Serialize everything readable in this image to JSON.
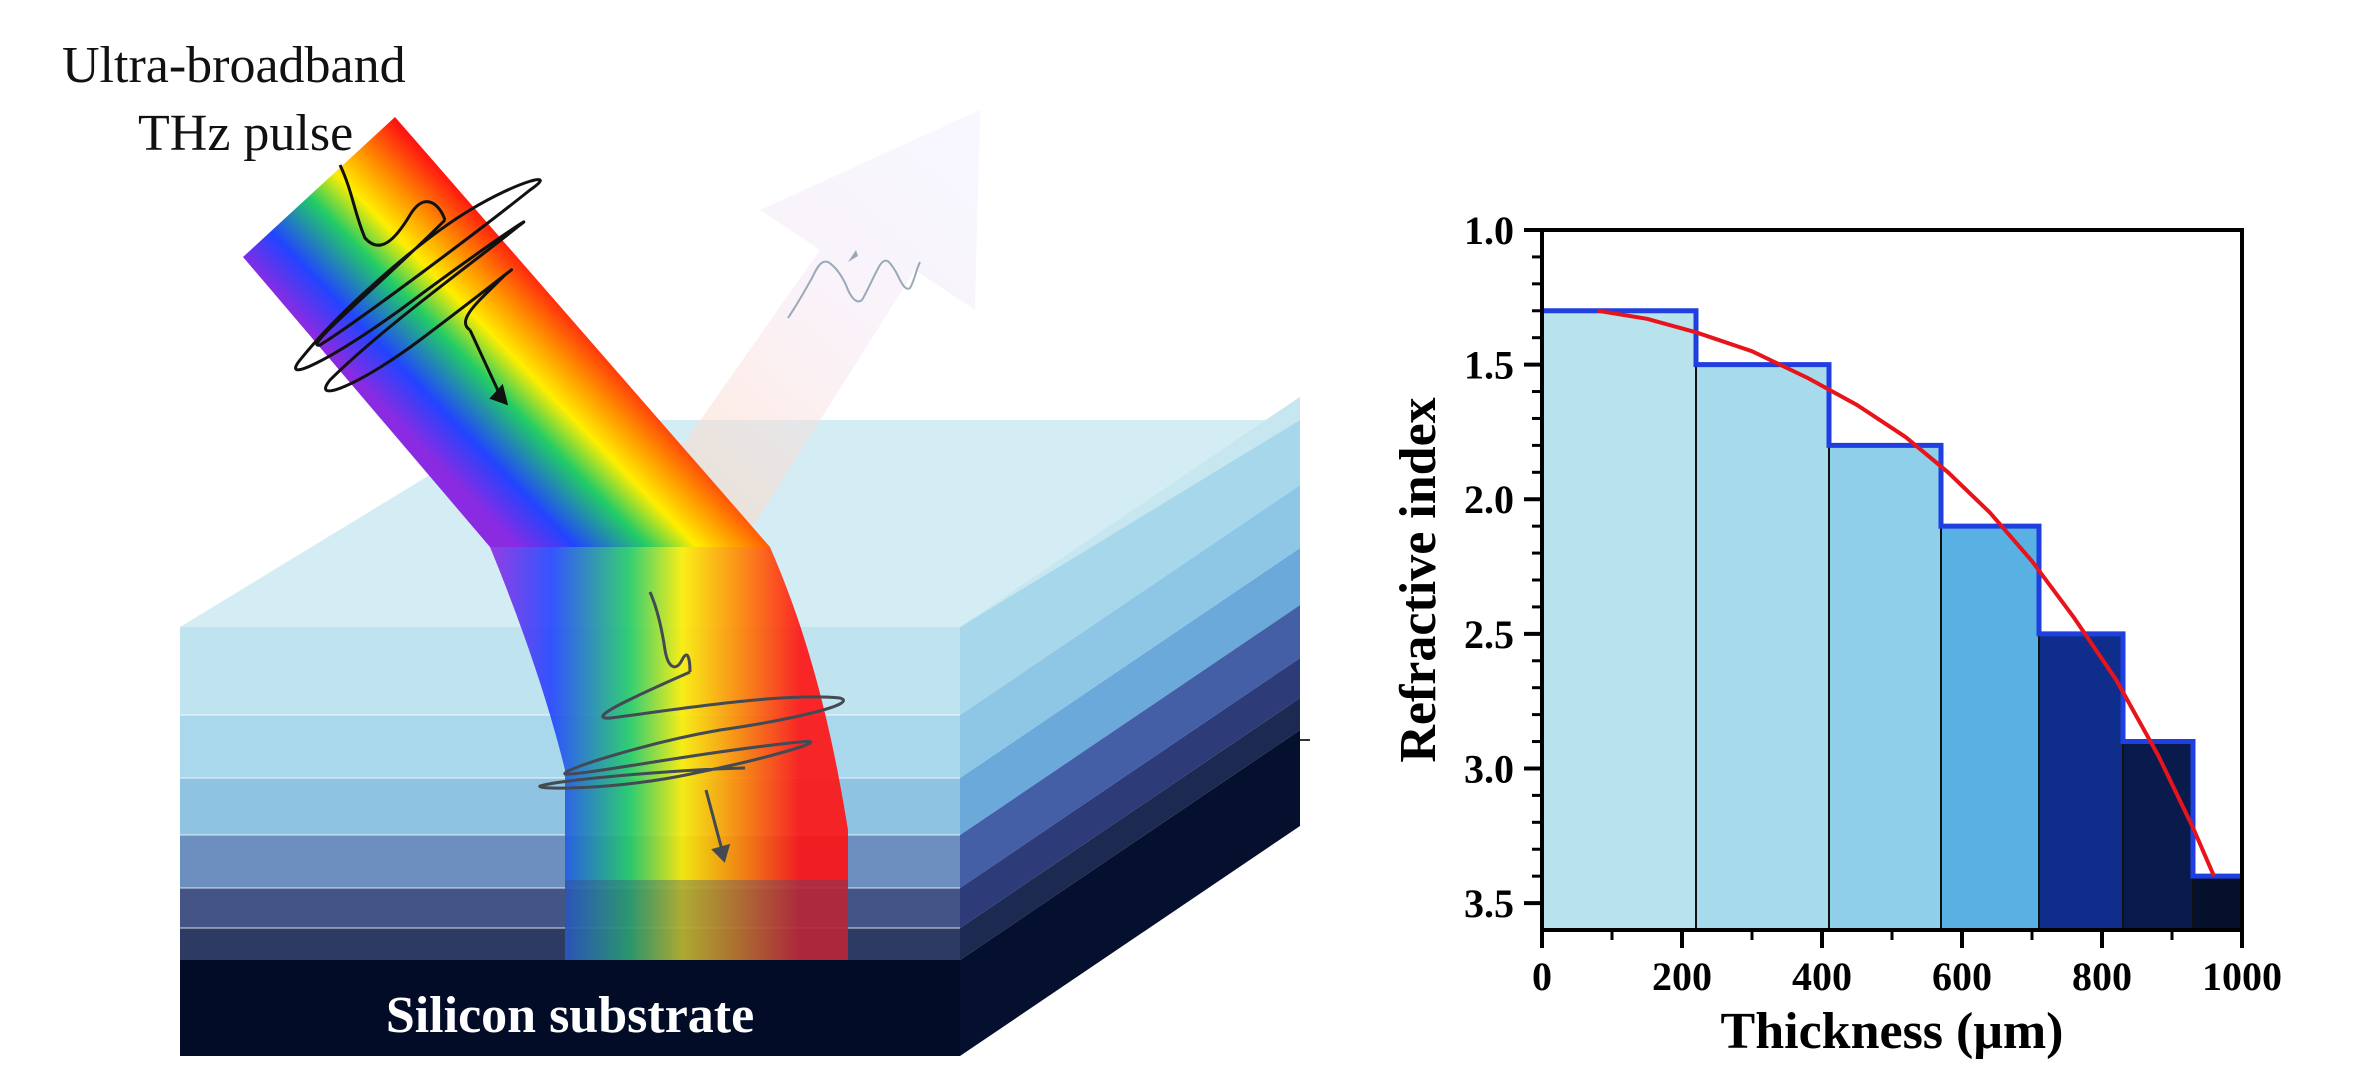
{
  "diagram": {
    "incident_label_line1": "Ultra-broadband",
    "incident_label_line2": "THz pulse",
    "substrate_label": "Silicon substrate",
    "colors": {
      "substrate": "#030c26",
      "layers": [
        "#c4e6f0",
        "#b6dfee",
        "#9fd3ea",
        "#7ab6df",
        "#445a9c",
        "#2d3b6e",
        "#1c2a52"
      ],
      "spectrum": [
        "#8a2be2",
        "#2244ff",
        "#22cc66",
        "#ffee00",
        "#ff8800",
        "#ff1111"
      ]
    }
  },
  "chart_data": {
    "type": "step",
    "xlabel": "Thickness (μm)",
    "ylabel": "Refractive index",
    "xlim": [
      0,
      1000
    ],
    "ylim": [
      1.0,
      3.6
    ],
    "y_inverted": true,
    "x_ticks": [
      0,
      200,
      400,
      600,
      800,
      1000
    ],
    "y_ticks": [
      1.0,
      1.5,
      2.0,
      2.5,
      3.0,
      3.5
    ],
    "x_tick_labels": [
      "0",
      "200",
      "400",
      "600",
      "800",
      "1000"
    ],
    "y_tick_labels": [
      "1.0",
      "1.5",
      "2.0",
      "2.5",
      "3.0",
      "3.5"
    ],
    "steps": [
      {
        "x0": 0,
        "x1": 220,
        "n": 1.3,
        "color": "#b8e2ec"
      },
      {
        "x0": 220,
        "x1": 410,
        "n": 1.5,
        "color": "#a7dbec"
      },
      {
        "x0": 410,
        "x1": 570,
        "n": 1.8,
        "color": "#8fcfea"
      },
      {
        "x0": 570,
        "x1": 710,
        "n": 2.1,
        "color": "#58b1e2"
      },
      {
        "x0": 710,
        "x1": 830,
        "n": 2.5,
        "color": "#0f2d8a"
      },
      {
        "x0": 830,
        "x1": 930,
        "n": 2.9,
        "color": "#091a4c"
      },
      {
        "x0": 930,
        "x1": 1000,
        "n": 3.4,
        "color": "#04102c"
      }
    ],
    "fit_curve": {
      "x": [
        80,
        150,
        220,
        300,
        380,
        450,
        520,
        580,
        640,
        700,
        760,
        820,
        880,
        930,
        960
      ],
      "y": [
        1.3,
        1.33,
        1.38,
        1.45,
        1.55,
        1.65,
        1.77,
        1.9,
        2.05,
        2.23,
        2.44,
        2.67,
        2.95,
        3.22,
        3.4
      ],
      "color": "#e8141c"
    },
    "step_outline_color": "#1f3fe0"
  }
}
